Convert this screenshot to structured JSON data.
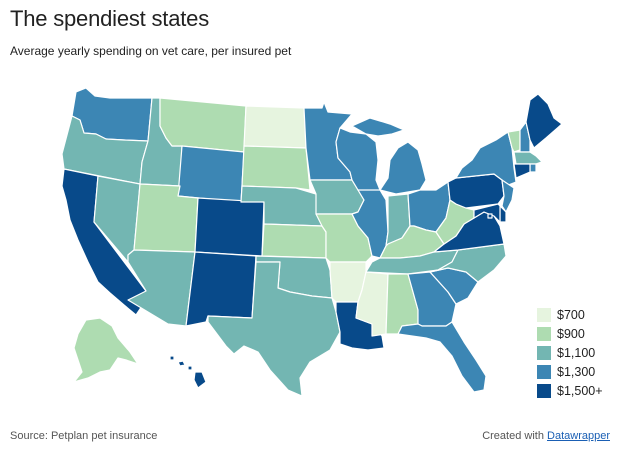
{
  "header": {
    "title": "The spendiest states",
    "subtitle": "Average yearly spending on vet care, per insured pet"
  },
  "footer": {
    "source": "Source: Petplan pet insurance",
    "credit_prefix": "Created with ",
    "credit_link": "Datawrapper"
  },
  "legend": [
    {
      "label": "$700",
      "color": "#e6f4df",
      "class": "c700"
    },
    {
      "label": "$900",
      "color": "#aedcb1",
      "class": "c900"
    },
    {
      "label": "$1,100",
      "color": "#73b6b2",
      "class": "c1100"
    },
    {
      "label": "$1,300",
      "color": "#3c86b4",
      "class": "c1300"
    },
    {
      "label": "$1,500+",
      "color": "#084a8a",
      "class": "c1500"
    }
  ],
  "states": [
    {
      "abbr": "WA",
      "bin": "c1300"
    },
    {
      "abbr": "OR",
      "bin": "c1100"
    },
    {
      "abbr": "CA",
      "bin": "c1500"
    },
    {
      "abbr": "NV",
      "bin": "c1100"
    },
    {
      "abbr": "ID",
      "bin": "c1100"
    },
    {
      "abbr": "MT",
      "bin": "c900"
    },
    {
      "abbr": "WY",
      "bin": "c1300"
    },
    {
      "abbr": "UT",
      "bin": "c900"
    },
    {
      "abbr": "AZ",
      "bin": "c1100"
    },
    {
      "abbr": "CO",
      "bin": "c1500"
    },
    {
      "abbr": "NM",
      "bin": "c1500"
    },
    {
      "abbr": "ND",
      "bin": "c700"
    },
    {
      "abbr": "SD",
      "bin": "c900"
    },
    {
      "abbr": "NE",
      "bin": "c1100"
    },
    {
      "abbr": "KS",
      "bin": "c900"
    },
    {
      "abbr": "OK",
      "bin": "c1100"
    },
    {
      "abbr": "TX",
      "bin": "c1100"
    },
    {
      "abbr": "MN",
      "bin": "c1300"
    },
    {
      "abbr": "IA",
      "bin": "c1100"
    },
    {
      "abbr": "MO",
      "bin": "c900"
    },
    {
      "abbr": "AR",
      "bin": "c700"
    },
    {
      "abbr": "LA",
      "bin": "c1500"
    },
    {
      "abbr": "WI",
      "bin": "c1300"
    },
    {
      "abbr": "IL",
      "bin": "c1300"
    },
    {
      "abbr": "MI",
      "bin": "c1300"
    },
    {
      "abbr": "IN",
      "bin": "c1100"
    },
    {
      "abbr": "OH",
      "bin": "c1300"
    },
    {
      "abbr": "KY",
      "bin": "c900"
    },
    {
      "abbr": "TN",
      "bin": "c1100"
    },
    {
      "abbr": "MS",
      "bin": "c700"
    },
    {
      "abbr": "AL",
      "bin": "c900"
    },
    {
      "abbr": "GA",
      "bin": "c1300"
    },
    {
      "abbr": "FL",
      "bin": "c1300"
    },
    {
      "abbr": "SC",
      "bin": "c1300"
    },
    {
      "abbr": "NC",
      "bin": "c1100"
    },
    {
      "abbr": "VA",
      "bin": "c1500"
    },
    {
      "abbr": "WV",
      "bin": "c900"
    },
    {
      "abbr": "PA",
      "bin": "c1500"
    },
    {
      "abbr": "NY",
      "bin": "c1300"
    },
    {
      "abbr": "VT",
      "bin": "c900"
    },
    {
      "abbr": "NH",
      "bin": "c1300"
    },
    {
      "abbr": "ME",
      "bin": "c1500"
    },
    {
      "abbr": "MA",
      "bin": "c1100"
    },
    {
      "abbr": "RI",
      "bin": "c1300"
    },
    {
      "abbr": "CT",
      "bin": "c1500"
    },
    {
      "abbr": "NJ",
      "bin": "c1300"
    },
    {
      "abbr": "DE",
      "bin": "c1500"
    },
    {
      "abbr": "MD",
      "bin": "c1500"
    },
    {
      "abbr": "DC",
      "bin": "c1500"
    },
    {
      "abbr": "AK",
      "bin": "c900"
    },
    {
      "abbr": "HI",
      "bin": "c1500"
    }
  ]
}
